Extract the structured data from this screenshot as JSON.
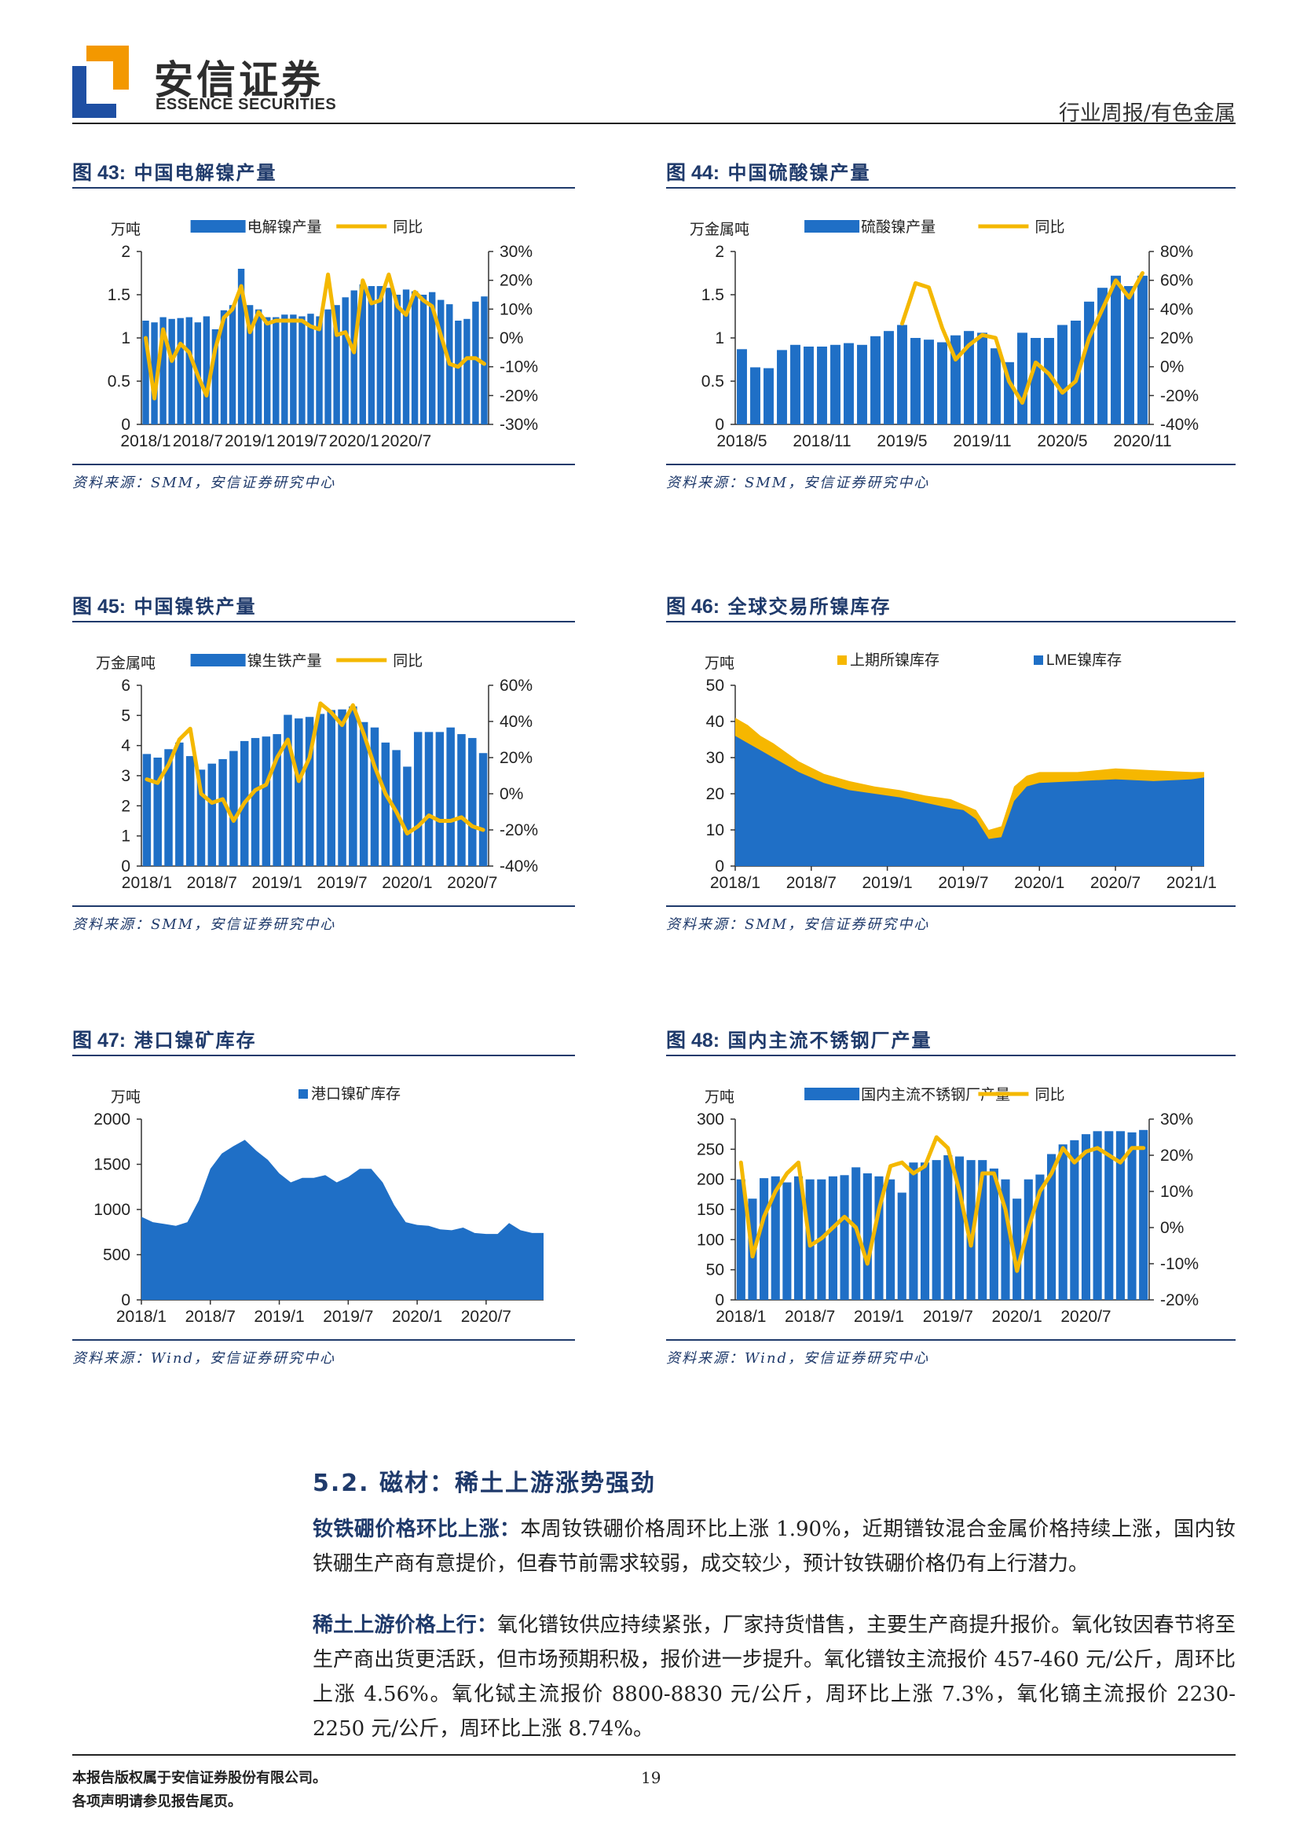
{
  "header": {
    "logo_cn": "安信证券",
    "logo_en": "ESSENCE SECURITIES",
    "category": "行业周报/有色金属"
  },
  "figures": [
    {
      "label": "图 43:",
      "title": "中国电解镍产量",
      "source": "资料来源：SMM，安信证券研究中心",
      "chart_data": {
        "type": "bar",
        "left_unit": "万吨",
        "bar_series": "电解镍产量",
        "line_series": "同比",
        "y_left": {
          "min": 0,
          "max": 2,
          "ticks": [
            "0",
            "0.5",
            "1",
            "1.5",
            "2"
          ]
        },
        "y_right": {
          "min": -30,
          "max": 30,
          "ticks": [
            "-30%",
            "-20%",
            "-10%",
            "0%",
            "10%",
            "20%",
            "30%"
          ]
        },
        "x_ticks": [
          "2018/1",
          "2018/7",
          "2019/1",
          "2019/7",
          "2020/1",
          "2020/7"
        ],
        "tick_every": 6,
        "bars": [
          1.2,
          1.18,
          1.24,
          1.22,
          1.23,
          1.24,
          1.18,
          1.25,
          1.1,
          1.32,
          1.38,
          1.8,
          1.38,
          1.33,
          1.24,
          1.24,
          1.27,
          1.27,
          1.25,
          1.28,
          1.25,
          1.33,
          1.38,
          1.47,
          1.55,
          1.62,
          1.6,
          1.6,
          1.58,
          1.5,
          1.56,
          1.54,
          1.5,
          1.53,
          1.44,
          1.39,
          1.2,
          1.22,
          1.42,
          1.48
        ],
        "line": [
          0,
          -21,
          3,
          -8,
          -2,
          -5,
          -13,
          -20,
          -4,
          7,
          10,
          18,
          2,
          9,
          5,
          6,
          6,
          6,
          6,
          4,
          3,
          22,
          1,
          2,
          -5,
          20,
          12,
          13,
          22,
          11,
          8,
          16,
          13,
          11,
          1,
          -9,
          -10,
          -7,
          -7,
          -9
        ]
      }
    },
    {
      "label": "图 44:",
      "title": "中国硫酸镍产量",
      "source": "资料来源：SMM，安信证券研究中心",
      "chart_data": {
        "type": "bar",
        "left_unit": "万金属吨",
        "bar_series": "硫酸镍产量",
        "line_series": "同比",
        "y_left": {
          "min": 0,
          "max": 2,
          "ticks": [
            "0",
            "0.5",
            "1",
            "1.5",
            "2"
          ]
        },
        "y_right": {
          "min": -40,
          "max": 80,
          "ticks": [
            "-40%",
            "-20%",
            "0%",
            "20%",
            "40%",
            "60%",
            "80%"
          ]
        },
        "x_ticks": [
          "2018/5",
          "2018/11",
          "2019/5",
          "2019/11",
          "2020/5",
          "2020/11"
        ],
        "tick_every": 6,
        "bars": [
          0.87,
          0.66,
          0.65,
          0.86,
          0.92,
          0.9,
          0.9,
          0.92,
          0.94,
          0.92,
          1.02,
          1.08,
          1.15,
          1.0,
          0.98,
          0.95,
          1.03,
          1.08,
          1.06,
          0.88,
          0.72,
          1.06,
          1.0,
          1.0,
          1.15,
          1.2,
          1.42,
          1.58,
          1.72,
          1.6,
          1.72
        ],
        "line": [
          null,
          null,
          null,
          null,
          null,
          null,
          null,
          null,
          null,
          null,
          null,
          null,
          30,
          58,
          55,
          27,
          5,
          15,
          22,
          20,
          -10,
          -25,
          3,
          -5,
          -18,
          -10,
          20,
          40,
          60,
          48,
          65
        ]
      }
    },
    {
      "label": "图 45:",
      "title": "中国镍铁产量",
      "source": "资料来源：SMM，安信证券研究中心",
      "chart_data": {
        "type": "bar",
        "left_unit": "万金属吨",
        "bar_series": "镍生铁产量",
        "line_series": "同比",
        "y_left": {
          "min": 0,
          "max": 6,
          "ticks": [
            "0",
            "1",
            "2",
            "3",
            "4",
            "5",
            "6"
          ]
        },
        "y_right": {
          "min": -40,
          "max": 60,
          "ticks": [
            "-40%",
            "-20%",
            "0%",
            "20%",
            "40%",
            "60%"
          ]
        },
        "x_ticks": [
          "2018/1",
          "2018/7",
          "2019/1",
          "2019/7",
          "2020/1",
          "2020/7"
        ],
        "tick_every": 6,
        "bars": [
          3.72,
          3.6,
          3.88,
          4.1,
          3.65,
          3.2,
          3.4,
          3.55,
          3.82,
          4.15,
          4.25,
          4.3,
          4.38,
          5.02,
          4.9,
          4.95,
          5.05,
          5.18,
          5.2,
          5.3,
          4.78,
          4.6,
          4.1,
          3.85,
          3.3,
          4.45,
          4.45,
          4.45,
          4.6,
          4.38,
          4.25,
          3.75
        ],
        "line": [
          8,
          6,
          16,
          30,
          36,
          0,
          -5,
          -3,
          -15,
          -5,
          2,
          5,
          20,
          30,
          7,
          20,
          50,
          45,
          38,
          49,
          33,
          15,
          0,
          -10,
          -22,
          -18,
          -12,
          -15,
          -15,
          -13,
          -18,
          -20
        ]
      }
    },
    {
      "label": "图 46:",
      "title": "全球交易所镍库存",
      "source": "资料来源：SMM，安信证券研究中心",
      "chart_data": {
        "type": "area",
        "left_unit": "万吨",
        "series": [
          {
            "name": "上期所镍库存"
          },
          {
            "name": "LME镍库存"
          }
        ],
        "y_left": {
          "min": 0,
          "max": 50,
          "ticks": [
            "0",
            "10",
            "20",
            "30",
            "40",
            "50"
          ]
        },
        "x_ticks": [
          "2018/1",
          "2018/7",
          "2019/1",
          "2019/7",
          "2020/1",
          "2020/7",
          "2021/1"
        ],
        "x_range": [
          0,
          37
        ],
        "tick_every": 6,
        "lme_points": [
          [
            0,
            36
          ],
          [
            1,
            34
          ],
          [
            2,
            32
          ],
          [
            3,
            30
          ],
          [
            5,
            26
          ],
          [
            7,
            23
          ],
          [
            9,
            21
          ],
          [
            11,
            20
          ],
          [
            13,
            19
          ],
          [
            15,
            17.5
          ],
          [
            17,
            16
          ],
          [
            18,
            15.5
          ],
          [
            19,
            13
          ],
          [
            20,
            7.5
          ],
          [
            21,
            8
          ],
          [
            22,
            18
          ],
          [
            23,
            22
          ],
          [
            24,
            23
          ],
          [
            27,
            23.5
          ],
          [
            30,
            24
          ],
          [
            33,
            23.5
          ],
          [
            36,
            24
          ],
          [
            37,
            24.5
          ]
        ],
        "total_points": [
          [
            0,
            41
          ],
          [
            1,
            39
          ],
          [
            2,
            36
          ],
          [
            3,
            34
          ],
          [
            5,
            29
          ],
          [
            7,
            25.5
          ],
          [
            9,
            23.5
          ],
          [
            11,
            22
          ],
          [
            13,
            21
          ],
          [
            15,
            19.5
          ],
          [
            17,
            18.5
          ],
          [
            18,
            17
          ],
          [
            19,
            15.5
          ],
          [
            20,
            10
          ],
          [
            21,
            11
          ],
          [
            22,
            22
          ],
          [
            23,
            25
          ],
          [
            24,
            26
          ],
          [
            27,
            26
          ],
          [
            30,
            27
          ],
          [
            33,
            26.5
          ],
          [
            36,
            26
          ],
          [
            37,
            26
          ]
        ]
      }
    },
    {
      "label": "图 47:",
      "title": "港口镍矿库存",
      "source": "资料来源：Wind，安信证券研究中心",
      "chart_data": {
        "type": "area",
        "left_unit": "万吨",
        "series": [
          {
            "name": "港口镍矿库存"
          }
        ],
        "y_left": {
          "min": 0,
          "max": 2000,
          "ticks": [
            "0",
            "500",
            "1000",
            "1500",
            "2000"
          ]
        },
        "x_ticks": [
          "2018/1",
          "2018/7",
          "2019/1",
          "2019/7",
          "2020/1",
          "2020/7"
        ],
        "x_range": [
          0,
          35
        ],
        "tick_every": 6,
        "points": [
          [
            0,
            920
          ],
          [
            1,
            860
          ],
          [
            2,
            840
          ],
          [
            3,
            820
          ],
          [
            4,
            860
          ],
          [
            5,
            1100
          ],
          [
            6,
            1450
          ],
          [
            7,
            1620
          ],
          [
            8,
            1700
          ],
          [
            9,
            1770
          ],
          [
            10,
            1650
          ],
          [
            11,
            1550
          ],
          [
            12,
            1400
          ],
          [
            13,
            1300
          ],
          [
            14,
            1350
          ],
          [
            15,
            1350
          ],
          [
            16,
            1380
          ],
          [
            17,
            1300
          ],
          [
            18,
            1360
          ],
          [
            19,
            1450
          ],
          [
            20,
            1450
          ],
          [
            21,
            1300
          ],
          [
            22,
            1050
          ],
          [
            23,
            860
          ],
          [
            24,
            830
          ],
          [
            25,
            820
          ],
          [
            26,
            780
          ],
          [
            27,
            770
          ],
          [
            28,
            800
          ],
          [
            29,
            740
          ],
          [
            30,
            730
          ],
          [
            31,
            730
          ],
          [
            32,
            850
          ],
          [
            33,
            770
          ],
          [
            34,
            740
          ],
          [
            35,
            740
          ]
        ]
      }
    },
    {
      "label": "图 48:",
      "title": "国内主流不锈钢厂产量",
      "source": "资料来源：Wind，安信证券研究中心",
      "chart_data": {
        "type": "bar",
        "left_unit": "万吨",
        "bar_series": "国内主流不锈钢厂产量",
        "line_series": "同比",
        "y_left": {
          "min": 0,
          "max": 300,
          "ticks": [
            "0",
            "50",
            "100",
            "150",
            "200",
            "250",
            "300"
          ]
        },
        "y_right": {
          "min": -20,
          "max": 30,
          "ticks": [
            "-20%",
            "-10%",
            "0%",
            "10%",
            "20%",
            "30%"
          ]
        },
        "x_ticks": [
          "2018/1",
          "2018/7",
          "2019/1",
          "2019/7",
          "2020/1",
          "2020/7"
        ],
        "tick_every": 6,
        "bars": [
          200,
          168,
          202,
          205,
          195,
          205,
          200,
          200,
          205,
          207,
          220,
          210,
          205,
          200,
          178,
          228,
          228,
          232,
          240,
          238,
          232,
          232,
          218,
          200,
          168,
          200,
          208,
          242,
          258,
          265,
          275,
          280,
          280,
          280,
          278,
          282
        ],
        "line": [
          18,
          -8,
          3,
          10,
          15,
          18,
          -5,
          -3,
          0,
          3,
          0,
          -10,
          5,
          17,
          18,
          15,
          17,
          25,
          22,
          10,
          -5,
          15,
          15,
          5,
          -12,
          0,
          10,
          15,
          22,
          18,
          21,
          22,
          20,
          18,
          22,
          22
        ]
      }
    }
  ],
  "section": {
    "number": "5.2.",
    "title": "磁材：稀土上游涨势强劲"
  },
  "paragraphs": [
    {
      "lead": "钕铁硼价格环比上涨：",
      "body": "本周钕铁硼价格周环比上涨 1.90%，近期镨钕混合金属价格持续上涨，国内钕铁硼生产商有意提价，但春节前需求较弱，成交较少，预计钕铁硼价格仍有上行潜力。"
    },
    {
      "lead": "稀土上游价格上行：",
      "body": "氧化镨钕供应持续紧张，厂家持货惜售，主要生产商提升报价。氧化钕因春节将至生产商出货更活跃，但市场预期积极，报价进一步提升。氧化镨钕主流报价 457-460 元/公斤，周环比上涨 4.56%。氧化铽主流报价 8800-8830 元/公斤，周环比上涨 7.3%，氧化镝主流报价 2230-2250 元/公斤，周环比上涨 8.74%。"
    }
  ],
  "footer": {
    "line1": "本报告版权属于安信证券股份有限公司。",
    "line2": "各项声明请参见报告尾页。",
    "page": "19"
  },
  "colors": {
    "bar": "#1f6fc6",
    "line": "#f4b800",
    "navy": "#1f3a6b",
    "area_shfe": "#f6b700"
  }
}
